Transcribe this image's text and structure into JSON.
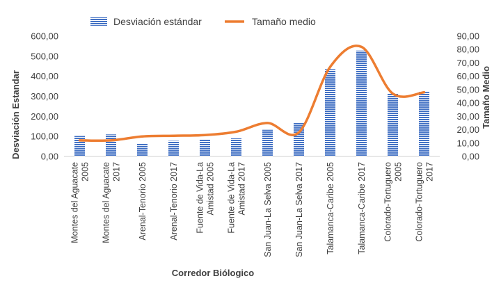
{
  "chart_data": {
    "type": "bar+line",
    "categories": [
      [
        "Montes del Aguacate",
        "2005"
      ],
      [
        "Montes del Aguacate",
        "2017"
      ],
      [
        "Arenal-Tenorio 2005"
      ],
      [
        "Arenal-Tenorio 2017"
      ],
      [
        "Fuente de Vida-La",
        "Amistad  2005"
      ],
      [
        "Fuente de Vida-La",
        "Amistad 2017"
      ],
      [
        "San Juan-La Selva 2005"
      ],
      [
        "San Juan-La Selva 2017"
      ],
      [
        "Talamanca-Caribe 2005"
      ],
      [
        "Talamanca-Caribe 2017"
      ],
      [
        "Colorado-Tortuguero",
        "2005"
      ],
      [
        "Colorado-Tortuguero",
        "2017"
      ]
    ],
    "series": [
      {
        "name": "Desviación estándar",
        "kind": "bar",
        "axis": "left",
        "color": "#4472C4",
        "values": [
          102,
          110,
          65,
          78,
          85,
          90,
          133,
          168,
          435,
          528,
          315,
          322
        ]
      },
      {
        "name": "Tamaño medio",
        "kind": "line",
        "axis": "right",
        "color": "#ED7D31",
        "values": [
          12,
          12,
          15,
          15.5,
          16,
          18.5,
          25,
          18,
          67,
          82,
          47,
          48
        ]
      }
    ],
    "xlabel": "Corredor Biólogico",
    "ylabel_left": "Desviación Estandar",
    "ylabel_right": "Tamaño Medio",
    "ylim_left": [
      0,
      600
    ],
    "ylim_right": [
      0,
      90
    ],
    "yticks_left": [
      "0,00",
      "100,00",
      "200,00",
      "300,00",
      "400,00",
      "500,00",
      "600,00"
    ],
    "yticks_right": [
      "0,00",
      "10,00",
      "20,00",
      "30,00",
      "40,00",
      "50,00",
      "60,00",
      "70,00",
      "80,00",
      "90,00"
    ],
    "grid": false,
    "legend_position": "top"
  }
}
